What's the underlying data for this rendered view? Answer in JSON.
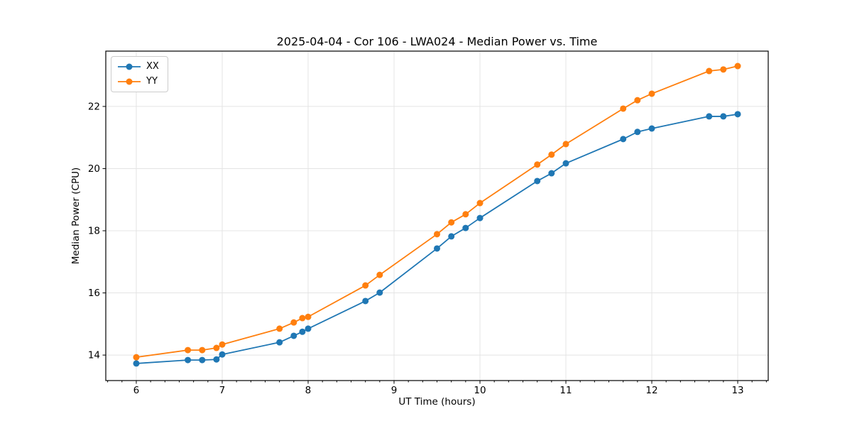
{
  "chart_data": {
    "type": "line",
    "title": "2025-04-04 - Cor 106 - LWA024 - Median Power vs. Time",
    "xlabel": "UT Time (hours)",
    "ylabel": "Median Power (CPU)",
    "xlim": [
      5.645,
      13.355
    ],
    "ylim": [
      13.18,
      23.78
    ],
    "xticks": [
      6,
      7,
      8,
      9,
      10,
      11,
      12,
      13
    ],
    "yticks": [
      14,
      16,
      18,
      20,
      22
    ],
    "x_minor_tick_step_hours": 0.1667,
    "grid": true,
    "grid_color": "#e4e4e4",
    "axis_color": "#000000",
    "legend_position": "upper-left",
    "x": [
      6.0,
      6.6,
      6.767,
      6.933,
      7.0,
      7.667,
      7.833,
      7.933,
      8.0,
      8.667,
      8.833,
      9.5,
      9.667,
      9.833,
      10.0,
      10.667,
      10.833,
      11.0,
      11.667,
      11.833,
      12.0,
      12.667,
      12.833,
      13.0
    ],
    "series": [
      {
        "name": "XX",
        "color": "#1f77b4",
        "values": [
          13.73,
          13.84,
          13.84,
          13.86,
          14.02,
          14.41,
          14.62,
          14.75,
          14.85,
          15.74,
          16.01,
          17.43,
          17.82,
          18.09,
          18.41,
          19.6,
          19.85,
          20.17,
          20.95,
          21.18,
          21.29,
          21.68,
          21.68,
          21.75
        ]
      },
      {
        "name": "YY",
        "color": "#ff7f0e",
        "values": [
          13.93,
          14.16,
          14.16,
          14.23,
          14.34,
          14.85,
          15.05,
          15.19,
          15.23,
          16.24,
          16.58,
          17.89,
          18.27,
          18.53,
          18.89,
          20.13,
          20.45,
          20.79,
          21.93,
          22.2,
          22.41,
          23.14,
          23.19,
          23.3
        ]
      }
    ]
  }
}
